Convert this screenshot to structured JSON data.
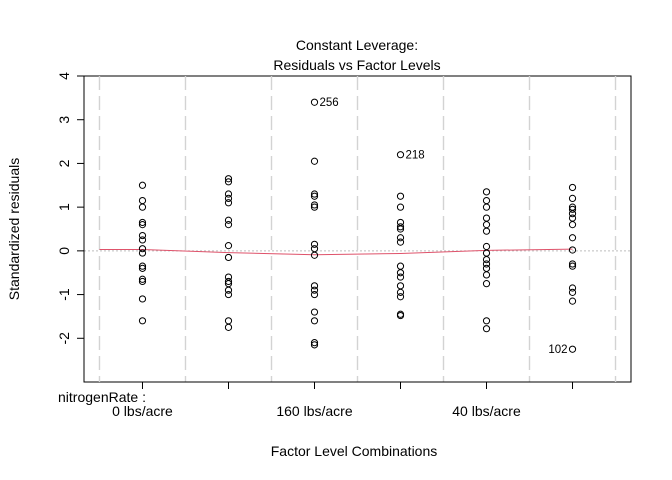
{
  "chart_data": {
    "type": "scatter",
    "title_lines": [
      "Constant Leverage:",
      "Residuals vs Factor Levels"
    ],
    "xlabel": "Factor Level Combinations",
    "ylabel": "Standardized residuals",
    "factor_name": "nitrogenRate :",
    "ylim": [
      -3,
      4
    ],
    "yticks": [
      -2,
      -1,
      0,
      1,
      2,
      3,
      4
    ],
    "xticks": [
      1,
      2,
      3,
      4,
      5,
      6
    ],
    "x_tick_labels": [
      {
        "x": 1,
        "label": "0 lbs/acre"
      },
      {
        "x": 3,
        "label": "160 lbs/acre"
      },
      {
        "x": 5,
        "label": "40 lbs/acre"
      }
    ],
    "group_boundaries": [
      0.5,
      1.5,
      2.5,
      3.5,
      4.5,
      5.5,
      6.5
    ],
    "xlim": [
      0.32,
      6.68
    ],
    "zero_line": {
      "y": 0,
      "color": "#bebebe",
      "style": "dotted"
    },
    "boundary_color": "#d3d3d3",
    "smoother_color": "#df536b",
    "smoother": [
      {
        "x": 1,
        "y": 0.03
      },
      {
        "x": 2,
        "y": -0.04
      },
      {
        "x": 3,
        "y": -0.09
      },
      {
        "x": 4,
        "y": -0.06
      },
      {
        "x": 5,
        "y": 0.01
      },
      {
        "x": 6,
        "y": 0.04
      }
    ],
    "groups": [
      {
        "x": 1,
        "values": [
          1.5,
          1.15,
          1.0,
          0.65,
          0.6,
          0.35,
          0.25,
          0.05,
          -0.05,
          -0.35,
          -0.4,
          -0.65,
          -0.7,
          -1.1,
          -1.6
        ]
      },
      {
        "x": 2,
        "values": [
          1.65,
          1.58,
          1.3,
          1.2,
          1.1,
          0.7,
          0.6,
          0.12,
          -0.15,
          -0.6,
          -0.7,
          -0.75,
          -0.9,
          -1.0,
          -1.6,
          -1.75
        ]
      },
      {
        "x": 3,
        "values": [
          3.4,
          2.05,
          1.3,
          1.25,
          1.05,
          1.0,
          0.15,
          0.05,
          -0.1,
          -0.8,
          -0.9,
          -1.0,
          -1.4,
          -1.6,
          -2.1,
          -2.15
        ]
      },
      {
        "x": 4,
        "values": [
          2.2,
          1.25,
          1.0,
          0.65,
          0.55,
          0.5,
          0.3,
          0.2,
          -0.35,
          -0.5,
          -0.6,
          -0.8,
          -0.95,
          -1.05,
          -1.45,
          -1.48
        ]
      },
      {
        "x": 5,
        "values": [
          1.35,
          1.15,
          1.0,
          0.75,
          0.6,
          0.45,
          0.1,
          -0.05,
          -0.2,
          -0.3,
          -0.4,
          -0.55,
          -0.75,
          -1.6,
          -1.78
        ]
      },
      {
        "x": 6,
        "values": [
          1.45,
          1.2,
          1.0,
          0.95,
          0.85,
          0.75,
          0.6,
          0.3,
          0.02,
          -0.3,
          -0.35,
          -0.85,
          -0.95,
          -1.15,
          -2.25
        ]
      }
    ],
    "labeled_points": [
      {
        "x": 3,
        "y": 3.4,
        "label": "256",
        "side": "right"
      },
      {
        "x": 4,
        "y": 2.2,
        "label": "218",
        "side": "right"
      },
      {
        "x": 6,
        "y": -2.25,
        "label": "102",
        "side": "left"
      }
    ]
  }
}
